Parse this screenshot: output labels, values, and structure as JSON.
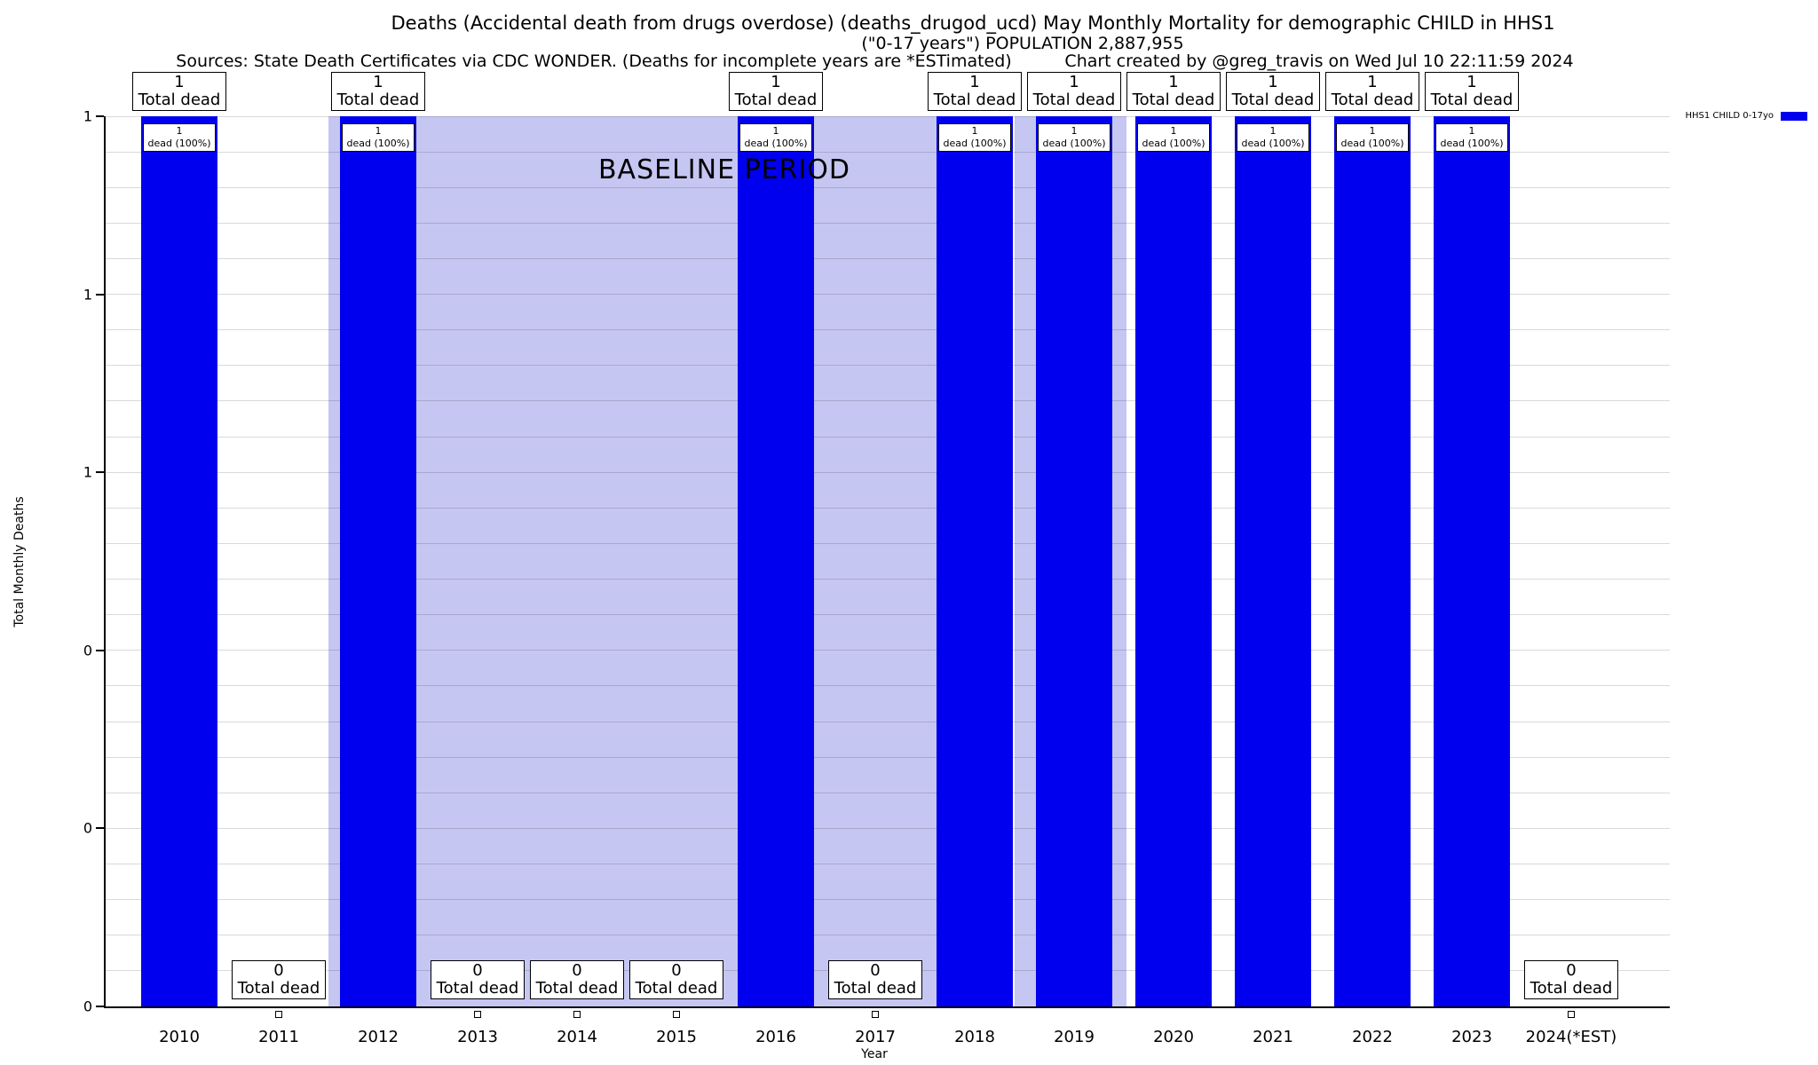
{
  "header": {
    "title_line1": "Deaths (Accidental death from drugs overdose) (deaths_drugod_ucd) May Monthly Mortality for demographic CHILD in HHS1",
    "title_line2": "(\"0-17 years\") POPULATION 2,887,955",
    "sources_line": "Sources: State Death Certificates via CDC WONDER. (Deaths for incomplete years are *ESTimated)",
    "credit_line": "Chart created by @greg_travis on Wed Jul 10 22:11:59 2024"
  },
  "legend": {
    "label": "HHS1 CHILD 0-17yo",
    "swatch_color": "#0000ee"
  },
  "chart_data": {
    "type": "bar",
    "title": "Deaths (Accidental death from drugs overdose) (deaths_drugod_ucd) May Monthly Mortality for demographic CHILD in HHS1",
    "subtitle": "(\"0-17 years\") POPULATION 2,887,955",
    "xlabel": "Year",
    "ylabel": "Total Monthly Deaths",
    "ylim": [
      0,
      1
    ],
    "ytick_labels": [
      "1",
      "1",
      "1",
      "0",
      "0",
      "0"
    ],
    "ytick_values": [
      1.0,
      0.8,
      0.6,
      0.4,
      0.2,
      0.0
    ],
    "grid": {
      "orientation": "horizontal",
      "minor_intervals": 25
    },
    "legend_position": "top-right outside plot",
    "categories": [
      "2010",
      "2011",
      "2012",
      "2013",
      "2014",
      "2015",
      "2016",
      "2017",
      "2018",
      "2019",
      "2020",
      "2021",
      "2022",
      "2023",
      "2024(*EST)"
    ],
    "series": [
      {
        "name": "HHS1 CHILD 0-17yo",
        "color": "#0000ee",
        "values": [
          1,
          0,
          1,
          0,
          0,
          0,
          1,
          0,
          1,
          1,
          1,
          1,
          1,
          1,
          0
        ]
      }
    ],
    "baseline": {
      "label": "BASELINE PERIOD",
      "band_color": "#c6c6f2",
      "bands_year_ranges": [
        [
          2011.5,
          2017.64
        ],
        [
          2018.4,
          2019.53
        ]
      ]
    },
    "annotations": {
      "nonzero_top": {
        "line1": "1",
        "line2": "Total dead"
      },
      "nonzero_inner": {
        "line1": "1",
        "line2": "dead (100%)"
      },
      "zero": {
        "line1": "0",
        "line2": "Total dead"
      }
    }
  }
}
